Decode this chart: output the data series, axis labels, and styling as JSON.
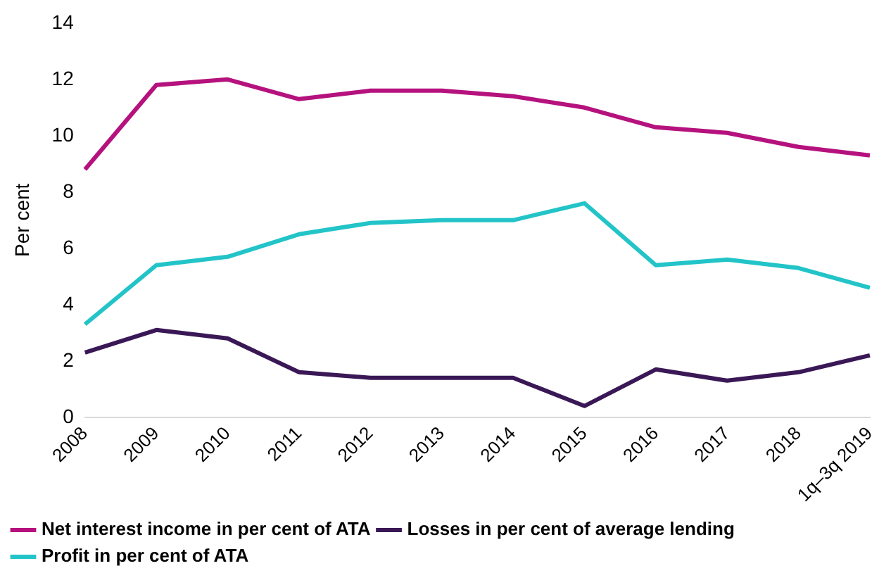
{
  "chart_data": {
    "type": "line",
    "ylabel": "Per cent",
    "categories": [
      "2008",
      "2009",
      "2010",
      "2011",
      "2012",
      "2013",
      "2014",
      "2015",
      "2016",
      "2017",
      "2018",
      "1q–3q 2019"
    ],
    "series": [
      {
        "name": "Net interest income in per cent of ATA",
        "color": "#b5127e",
        "values": [
          8.8,
          11.8,
          12.0,
          11.3,
          11.6,
          11.6,
          11.4,
          11.0,
          10.3,
          10.1,
          9.6,
          9.3
        ]
      },
      {
        "name": "Losses in per cent of average lending",
        "color": "#3a1856",
        "values": [
          2.3,
          3.1,
          2.8,
          1.6,
          1.4,
          1.4,
          1.4,
          0.4,
          1.7,
          1.3,
          1.6,
          2.2
        ]
      },
      {
        "name": "Profit in per cent of ATA",
        "color": "#22c4c8",
        "values": [
          3.3,
          5.4,
          5.7,
          6.5,
          6.9,
          7.0,
          7.0,
          7.6,
          5.4,
          5.6,
          5.3,
          4.6
        ]
      }
    ],
    "ylim": [
      0,
      14
    ],
    "yticks": [
      0,
      2,
      4,
      6,
      8,
      10,
      12,
      14
    ],
    "grid": false,
    "legend": "bottom",
    "marker": "none",
    "line_style": "solid"
  }
}
